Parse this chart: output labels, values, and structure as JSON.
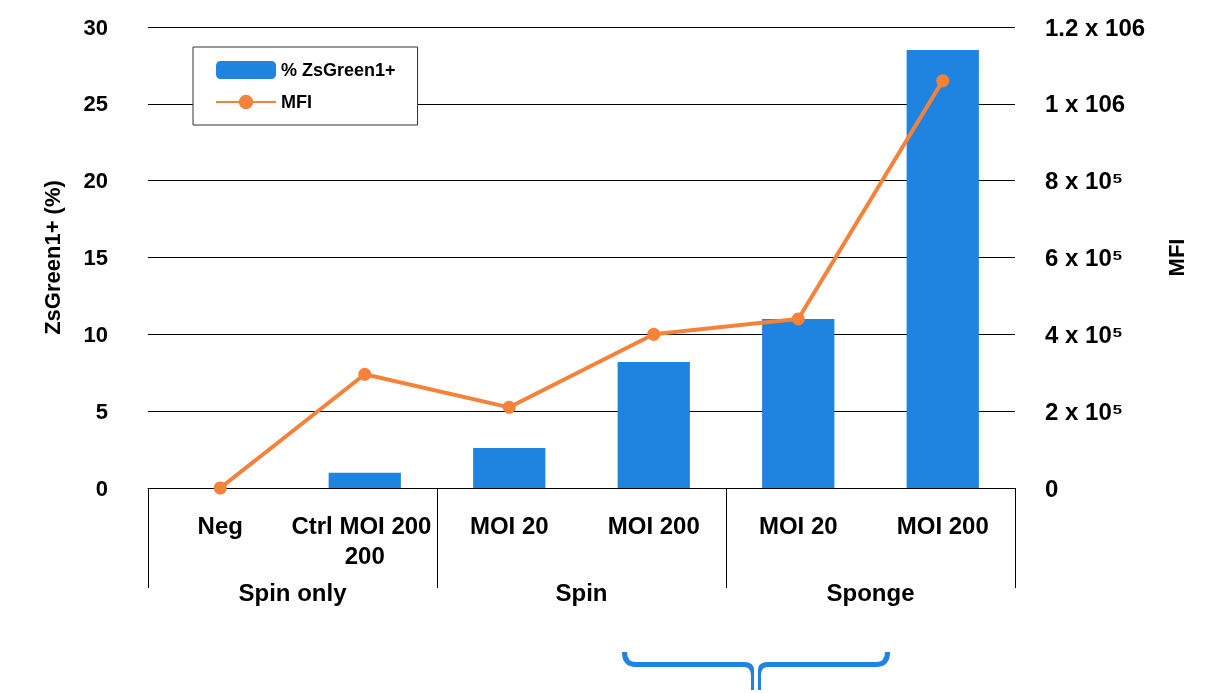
{
  "chart_data": {
    "type": "bar",
    "ylabel": "ZsGreen1+ (%)",
    "y2label": "MFI",
    "categories": [
      "Neg",
      "Ctrl MOI 200 200",
      "MOI 20",
      "MOI 200",
      "MOI 20",
      "MOI 200"
    ],
    "series": [
      {
        "name": "% ZsGreen1+",
        "color": "#1f83e0",
        "values": [
          0,
          1.0,
          2.6,
          8.2,
          11.0,
          28.5
        ]
      },
      {
        "name": "MFI",
        "type": "line",
        "axis": "y2",
        "color": "#f5823a",
        "values": [
          0,
          296000,
          210000,
          400000,
          440000,
          1060000
        ]
      }
    ],
    "annotations": [
      "Spin only",
      "Spin",
      "Sponge"
    ],
    "ylim": [
      0,
      30
    ],
    "yticks": [
      0,
      5,
      10,
      15,
      20,
      25,
      30
    ],
    "y2lim": [
      0,
      1200000
    ],
    "y2ticks": [
      0,
      {
        "value": 200000,
        "label": "2 x 10⁵"
      },
      {
        "value": 400000,
        "label": "4 x 10⁵"
      },
      {
        "value": 600000,
        "label": "6 x 10⁵"
      },
      {
        "value": 800000,
        "label": "8 x 10⁵"
      },
      {
        "value": 1000000,
        "label": "1 x 106"
      },
      {
        "value": 1200000,
        "label": "1.2 x 106"
      }
    ],
    "grid": "y",
    "legend": "top left",
    "marker": "circle"
  }
}
